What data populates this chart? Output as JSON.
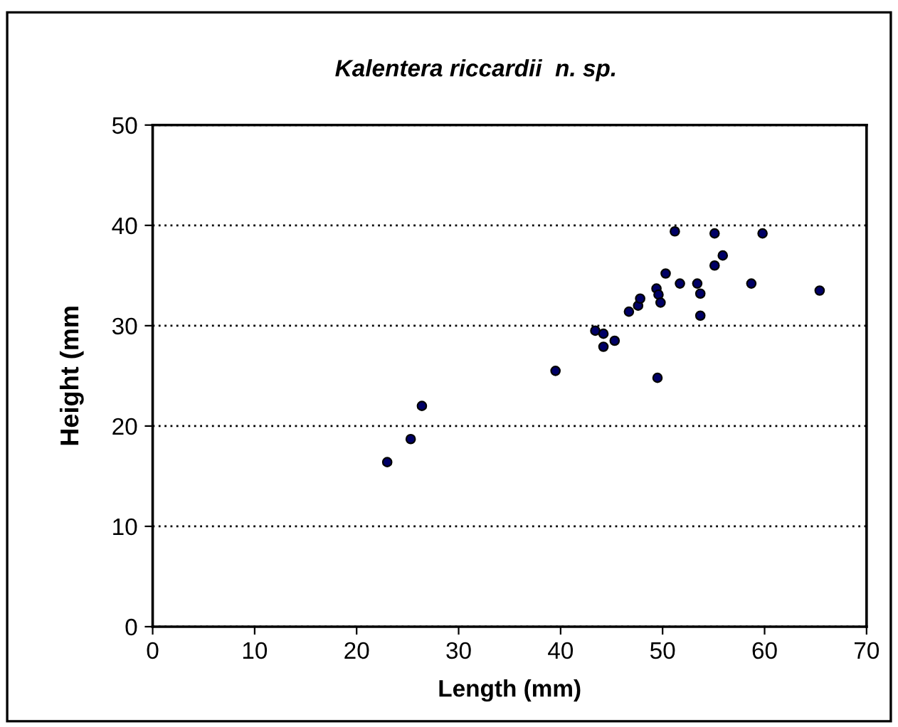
{
  "chart_data": {
    "type": "scatter",
    "title": "Kalentera riccardii  n. sp.",
    "xlabel": "Length (mm)",
    "ylabel": "Height (mm",
    "x": [
      23.0,
      25.3,
      26.4,
      39.5,
      43.4,
      44.2,
      44.2,
      45.3,
      46.7,
      47.6,
      47.8,
      49.4,
      49.6,
      49.8,
      49.5,
      50.3,
      51.2,
      51.7,
      53.4,
      53.7,
      53.7,
      55.1,
      55.9,
      55.1,
      58.7,
      59.8,
      65.4
    ],
    "values": [
      16.4,
      18.7,
      22.0,
      25.5,
      29.5,
      29.2,
      27.9,
      28.5,
      31.4,
      32.0,
      32.7,
      33.7,
      33.1,
      32.3,
      24.8,
      35.2,
      39.4,
      34.2,
      34.2,
      33.2,
      31.0,
      36.0,
      37.0,
      39.2,
      34.2,
      39.2,
      33.5
    ],
    "color": "#000066",
    "marker": "circle",
    "xlim": [
      0,
      70
    ],
    "ylim": [
      0,
      50
    ],
    "xticks": [
      0,
      10,
      20,
      30,
      40,
      50,
      60,
      70
    ],
    "yticks": [
      0,
      10,
      20,
      30,
      40,
      50
    ],
    "grid": "y",
    "legend": false
  }
}
